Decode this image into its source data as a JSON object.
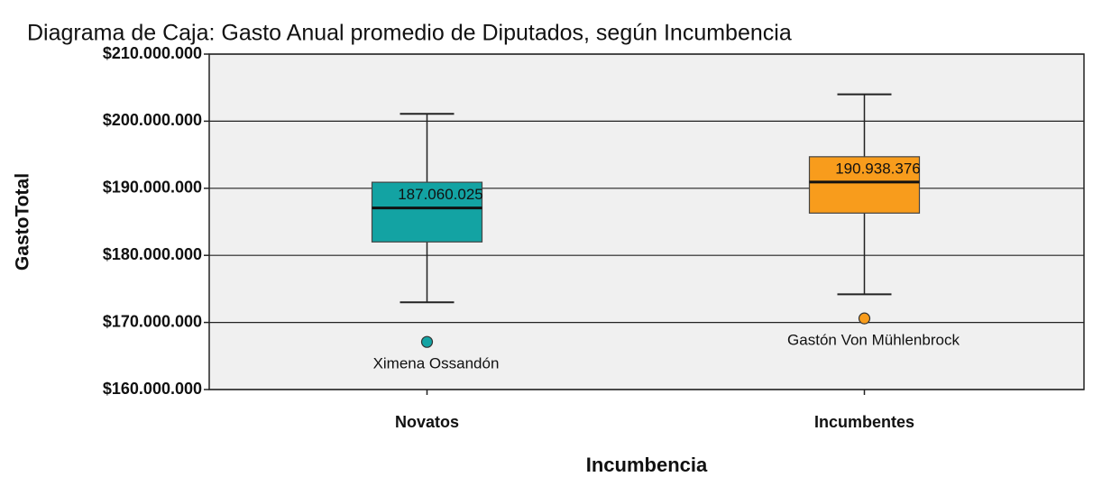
{
  "chart_data": {
    "type": "box",
    "title": "Diagrama de Caja: Gasto Anual promedio de Diputados, según Incumbencia",
    "xlabel": "Incumbencia",
    "ylabel": "GastoTotal",
    "categories": [
      "Novatos",
      "Incumbentes"
    ],
    "boxes": [
      {
        "whislo": 173000000,
        "q1": 182000000,
        "med": 187060025,
        "q3": 190900000,
        "whishi": 201100000,
        "med_label": "187.060.025",
        "fliers": [
          167100000
        ],
        "flier_labels": [
          "Ximena Ossandón"
        ],
        "color": "#13a3a3"
      },
      {
        "whislo": 174200000,
        "q1": 186300000,
        "med": 190938376,
        "q3": 194700000,
        "whishi": 204000000,
        "med_label": "190.938.376",
        "fliers": [
          170600000
        ],
        "flier_labels": [
          "Gastón Von Mühlenbrock"
        ],
        "color": "#f89c1c"
      }
    ],
    "ylim": [
      160000000,
      210000000
    ],
    "yticks": [
      {
        "value": 160000000,
        "label": "$160.000.000"
      },
      {
        "value": 170000000,
        "label": "$170.000.000"
      },
      {
        "value": 180000000,
        "label": "$180.000.000"
      },
      {
        "value": 190000000,
        "label": "$190.000.000"
      },
      {
        "value": 200000000,
        "label": "$200.000.000"
      },
      {
        "value": 210000000,
        "label": "$210.000.000"
      }
    ],
    "grid": true
  }
}
